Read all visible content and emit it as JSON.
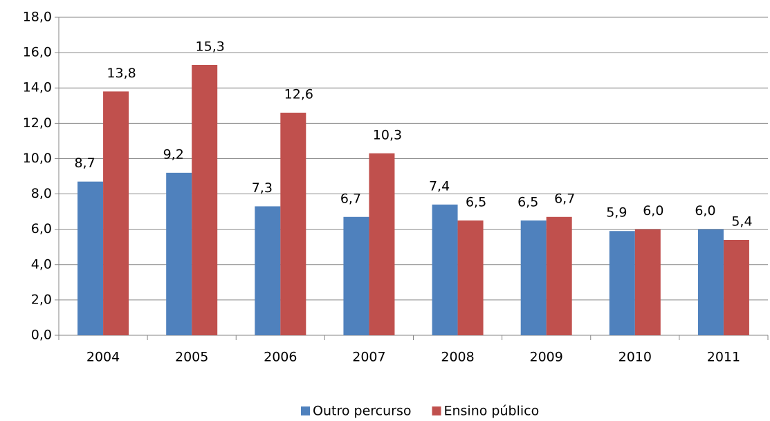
{
  "chart_data": {
    "type": "bar",
    "categories": [
      "2004",
      "2005",
      "2006",
      "2007",
      "2008",
      "2009",
      "2010",
      "2011"
    ],
    "series": [
      {
        "name": "Outro percurso",
        "color": "#4f81bd",
        "values": [
          8.7,
          9.2,
          7.3,
          6.7,
          7.4,
          6.5,
          5.9,
          6.0
        ],
        "value_labels": [
          "8,7",
          "9,2",
          "7,3",
          "6,7",
          "7,4",
          "6,5",
          "5,9",
          "6,0"
        ]
      },
      {
        "name": "Ensino público",
        "color": "#c0504d",
        "values": [
          13.8,
          15.3,
          12.6,
          10.3,
          6.5,
          6.7,
          6.0,
          5.4
        ],
        "value_labels": [
          "13,8",
          "15,3",
          "12,6",
          "10,3",
          "6,5",
          "6,7",
          "6,0",
          "5,4"
        ]
      }
    ],
    "ylim": [
      0,
      18
    ],
    "yticks": [
      {
        "value": 0,
        "label": "0,0"
      },
      {
        "value": 2,
        "label": "2,0"
      },
      {
        "value": 4,
        "label": "4,0"
      },
      {
        "value": 6,
        "label": "6,0"
      },
      {
        "value": 8,
        "label": "8,0"
      },
      {
        "value": 10,
        "label": "10,0"
      },
      {
        "value": 12,
        "label": "12,0"
      },
      {
        "value": 14,
        "label": "14,0"
      },
      {
        "value": 16,
        "label": "16,0"
      },
      {
        "value": 18,
        "label": "18,0"
      }
    ],
    "grid": true,
    "legend": "bottom"
  }
}
